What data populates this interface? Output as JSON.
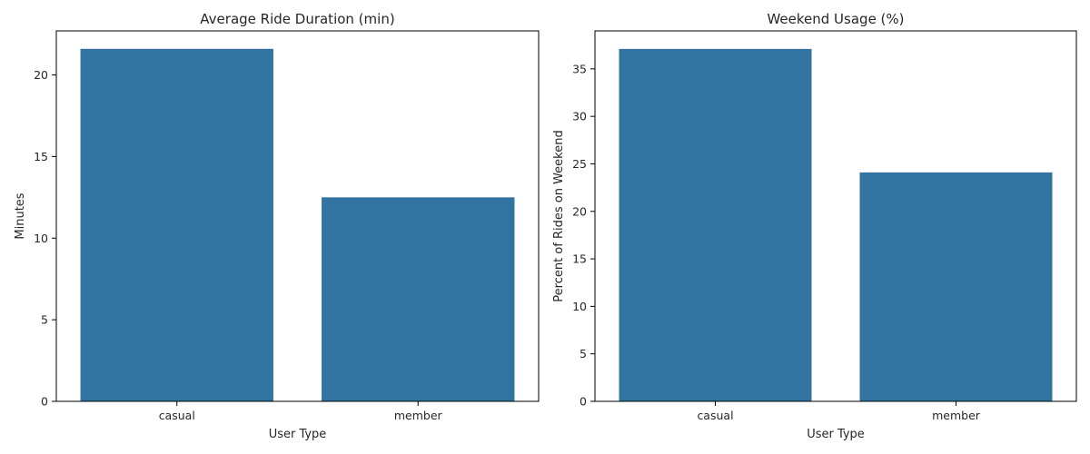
{
  "chart_data": [
    {
      "type": "bar",
      "title": "Average Ride Duration (min)",
      "xlabel": "User Type",
      "ylabel": "Minutes",
      "categories": [
        "casual",
        "member"
      ],
      "values": [
        21.6,
        12.5
      ],
      "ylim": [
        0,
        22.7
      ],
      "yticks": [
        0,
        5,
        10,
        15,
        20
      ],
      "color": "#3274a1",
      "grid": false
    },
    {
      "type": "bar",
      "title": "Weekend Usage (%)",
      "xlabel": "User Type",
      "ylabel": "Percent of Rides on Weekend",
      "categories": [
        "casual",
        "member"
      ],
      "values": [
        37.1,
        24.1
      ],
      "ylim": [
        0,
        39.0
      ],
      "yticks": [
        0,
        5,
        10,
        15,
        20,
        25,
        30,
        35
      ],
      "color": "#3274a1",
      "grid": false
    }
  ]
}
